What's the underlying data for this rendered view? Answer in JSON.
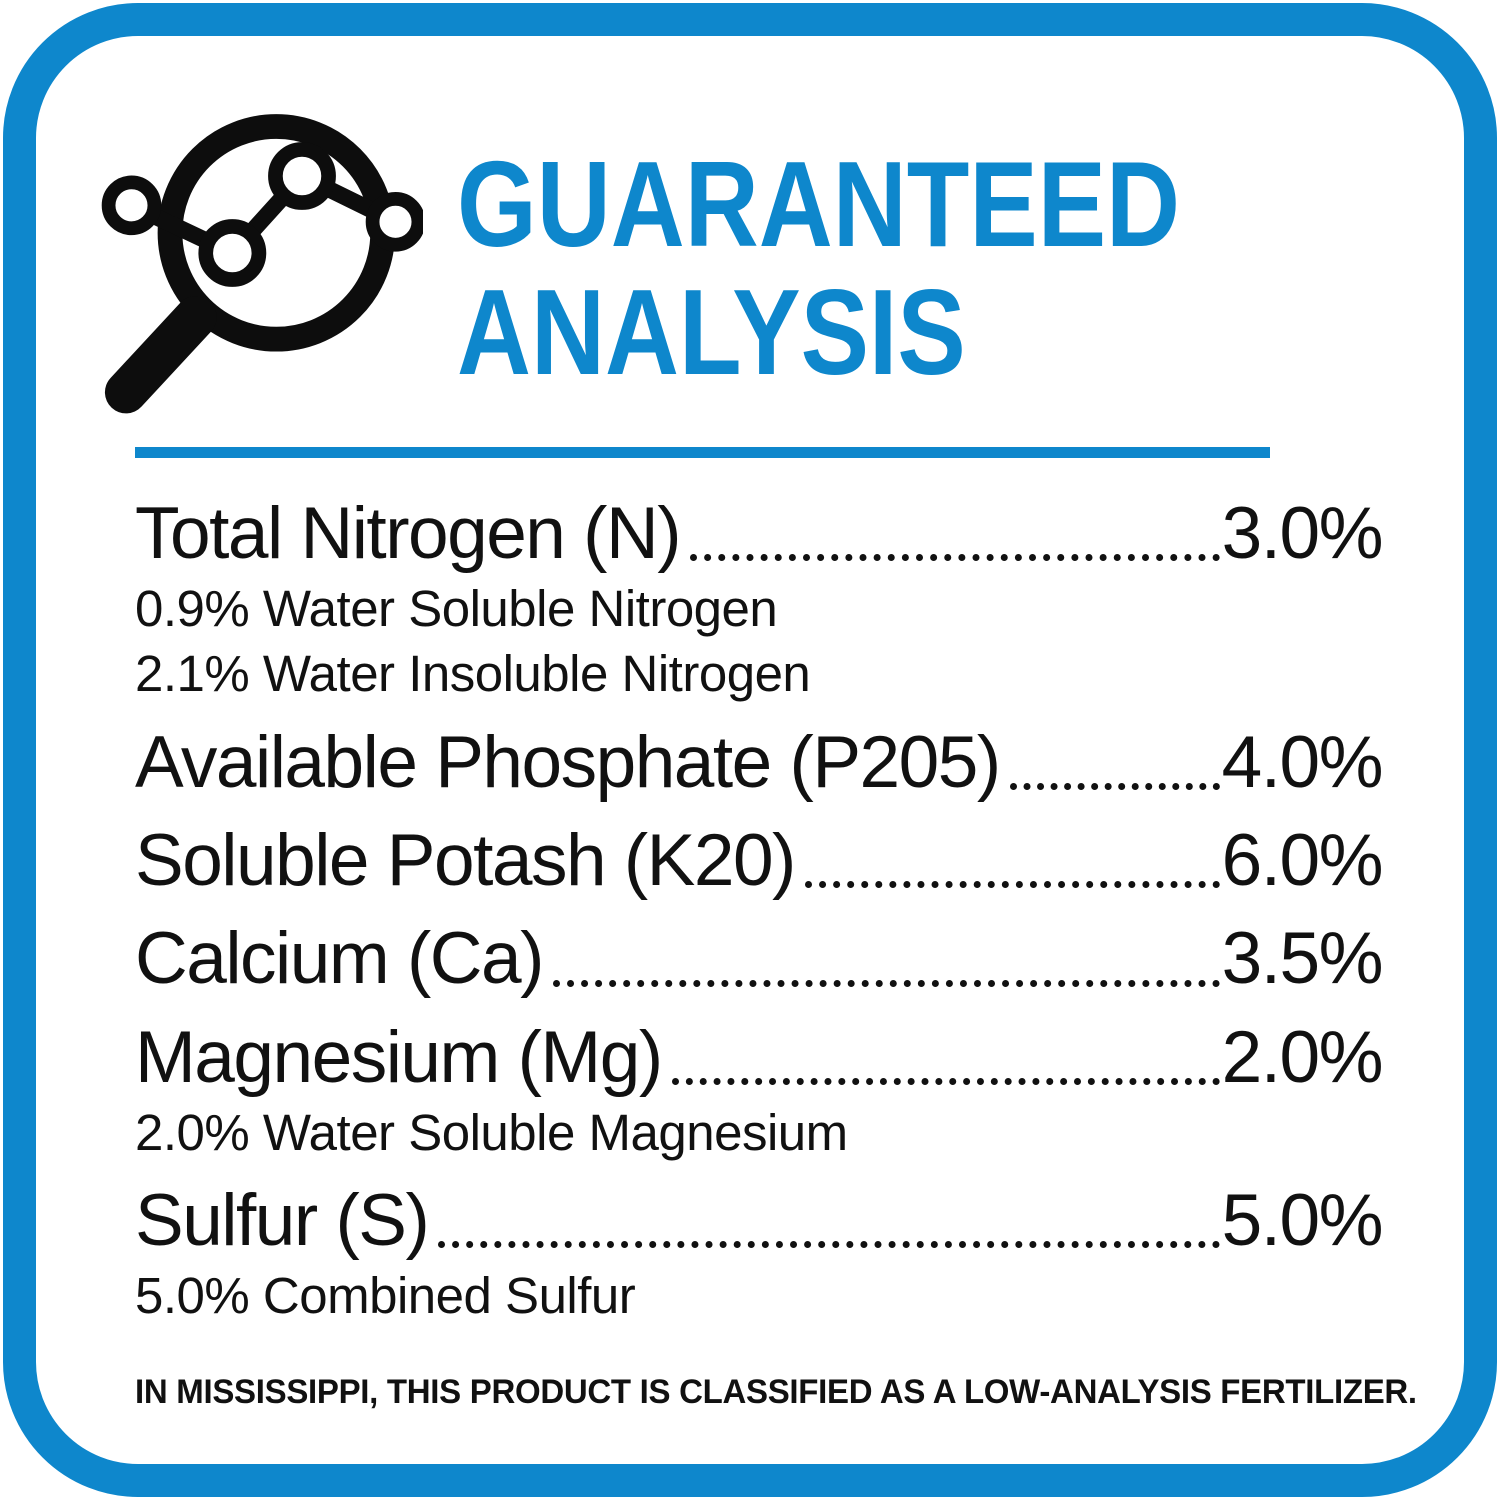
{
  "header": {
    "icon": "magnifier-chart-icon",
    "title_line1": "GUARANTEED",
    "title_line2": "ANALYSIS"
  },
  "colors": {
    "accent_blue": "#0E87CC",
    "text_black": "#111111"
  },
  "analysis": {
    "rows": [
      {
        "label": "Total Nitrogen (N)",
        "value": "3.0%",
        "subitems": [
          "0.9% Water Soluble Nitrogen",
          "2.1% Water Insoluble Nitrogen"
        ]
      },
      {
        "label": "Available Phosphate (P205)",
        "value": "4.0%",
        "subitems": []
      },
      {
        "label": "Soluble Potash (K20)",
        "value": "6.0%",
        "subitems": []
      },
      {
        "label": "Calcium (Ca)",
        "value": "3.5%",
        "subitems": []
      },
      {
        "label": "Magnesium (Mg)",
        "value": "2.0%",
        "subitems": [
          "2.0% Water Soluble Magnesium"
        ]
      },
      {
        "label": "Sulfur (S)",
        "value": "5.0%",
        "subitems": [
          "5.0% Combined Sulfur"
        ]
      }
    ],
    "footnote": "IN MISSISSIPPI, THIS PRODUCT IS CLASSIFIED AS A LOW-ANALYSIS FERTILIZER."
  }
}
